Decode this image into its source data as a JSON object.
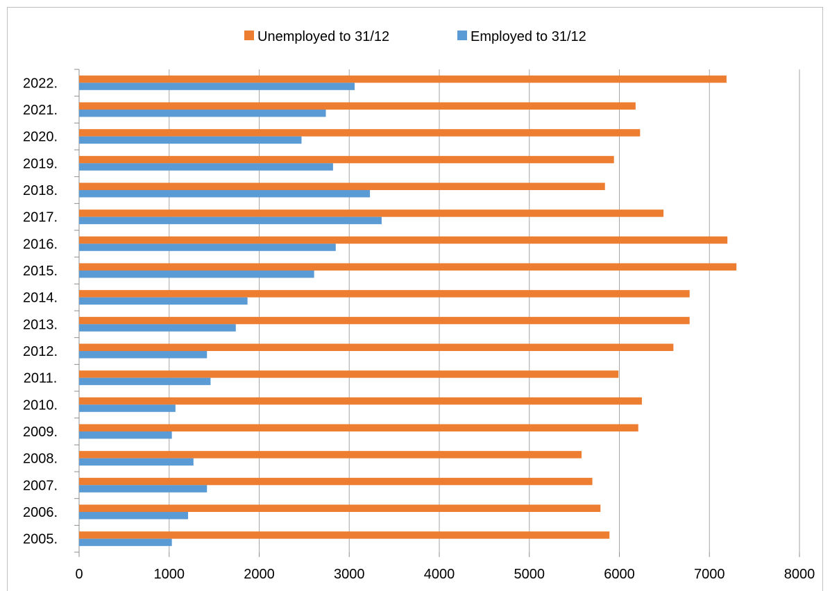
{
  "chart_data": {
    "type": "bar",
    "orientation": "horizontal",
    "categories": [
      "2005.",
      "2006.",
      "2007.",
      "2008.",
      "2009.",
      "2010.",
      "2011.",
      "2012.",
      "2013.",
      "2014.",
      "2015.",
      "2016.",
      "2017.",
      "2018.",
      "2019.",
      "2020.",
      "2021.",
      "2022."
    ],
    "series": [
      {
        "name": "Unemployed to 31/12",
        "color": "#ed7d31",
        "values": [
          5890,
          5790,
          5700,
          5580,
          6210,
          6250,
          5990,
          6600,
          6780,
          6780,
          7300,
          7200,
          6490,
          5840,
          5940,
          6230,
          6180,
          7190
        ]
      },
      {
        "name": "Employed to 31/12",
        "color": "#5b9bd5",
        "values": [
          1030,
          1210,
          1420,
          1270,
          1030,
          1070,
          1460,
          1420,
          1740,
          1870,
          2610,
          2850,
          3360,
          3230,
          2820,
          2470,
          2740,
          3060
        ]
      }
    ],
    "legend_order": [
      0,
      1
    ],
    "legend_position": "top",
    "xlim": [
      0,
      8000
    ],
    "xticks": [
      0,
      1000,
      2000,
      3000,
      4000,
      5000,
      6000,
      7000,
      8000
    ],
    "grid": true,
    "title": "",
    "xlabel": "",
    "ylabel": ""
  }
}
